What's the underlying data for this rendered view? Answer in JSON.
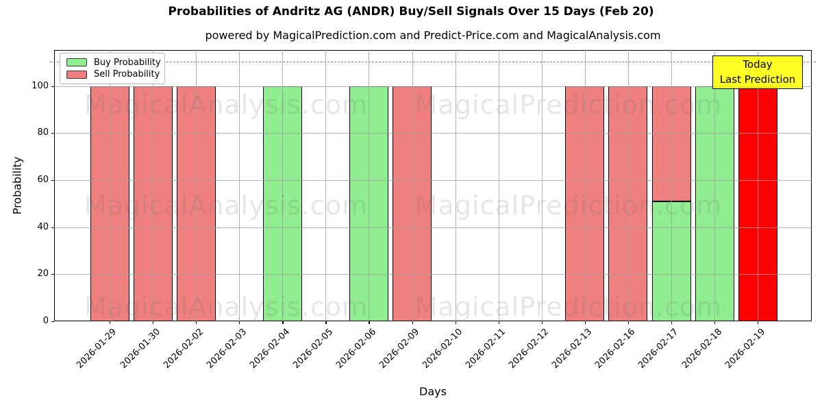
{
  "header": {
    "title": "Probabilities of Andritz AG (ANDR) Buy/Sell Signals Over 15 Days (Feb 20)",
    "subtitle": "powered by MagicalPrediction.com and Predict-Price.com and MagicalAnalysis.com"
  },
  "axes": {
    "x_label": "Days",
    "y_label": "Probability",
    "y_ticks": [
      0,
      20,
      40,
      60,
      80,
      100
    ]
  },
  "legend": {
    "items": [
      {
        "label": "Buy Probability",
        "color_key": "buy"
      },
      {
        "label": "Sell Probability",
        "color_key": "sell"
      }
    ]
  },
  "annotation": {
    "line1": "Today",
    "line2": "Last Prediction"
  },
  "watermarks": [
    "MagicalAnalysis.com",
    "MagicalPrediction.com"
  ],
  "colors": {
    "buy": "#90ee90",
    "sell": "#f08080",
    "today": "#ff0000",
    "annotation_bg": "#ffff00",
    "grid": "#a0a0a0",
    "threshold": "#7f7f7f"
  },
  "chart_data": {
    "type": "bar",
    "stacked": true,
    "grid": true,
    "legend_position": "upper left",
    "ylim": [
      0,
      115
    ],
    "threshold_dashed_line_y": 110,
    "categories": [
      "2026-01-29",
      "2026-01-30",
      "2026-02-02",
      "2026-02-03",
      "2026-02-04",
      "2026-02-05",
      "2026-02-06",
      "2026-02-09",
      "2026-02-10",
      "2026-02-11",
      "2026-02-12",
      "2026-02-13",
      "2026-02-16",
      "2026-02-17",
      "2026-02-18",
      "2026-02-19"
    ],
    "series": [
      {
        "name": "Buy Probability",
        "color_key": "buy",
        "values": [
          0,
          0,
          0,
          0,
          100,
          0,
          100,
          0,
          0,
          0,
          0,
          0,
          0,
          51,
          100,
          0
        ]
      },
      {
        "name": "Sell Probability",
        "color_key": "sell",
        "values": [
          100,
          100,
          100,
          0,
          0,
          0,
          0,
          100,
          0,
          0,
          0,
          100,
          100,
          49,
          0,
          0
        ]
      },
      {
        "name": "Today Last Prediction",
        "color_key": "today",
        "values": [
          0,
          0,
          0,
          0,
          0,
          0,
          0,
          0,
          0,
          0,
          0,
          0,
          0,
          0,
          0,
          100
        ]
      }
    ],
    "title": "Probabilities of Andritz AG (ANDR) Buy/Sell Signals Over 15 Days (Feb 20)",
    "xlabel": "Days",
    "ylabel": "Probability"
  }
}
